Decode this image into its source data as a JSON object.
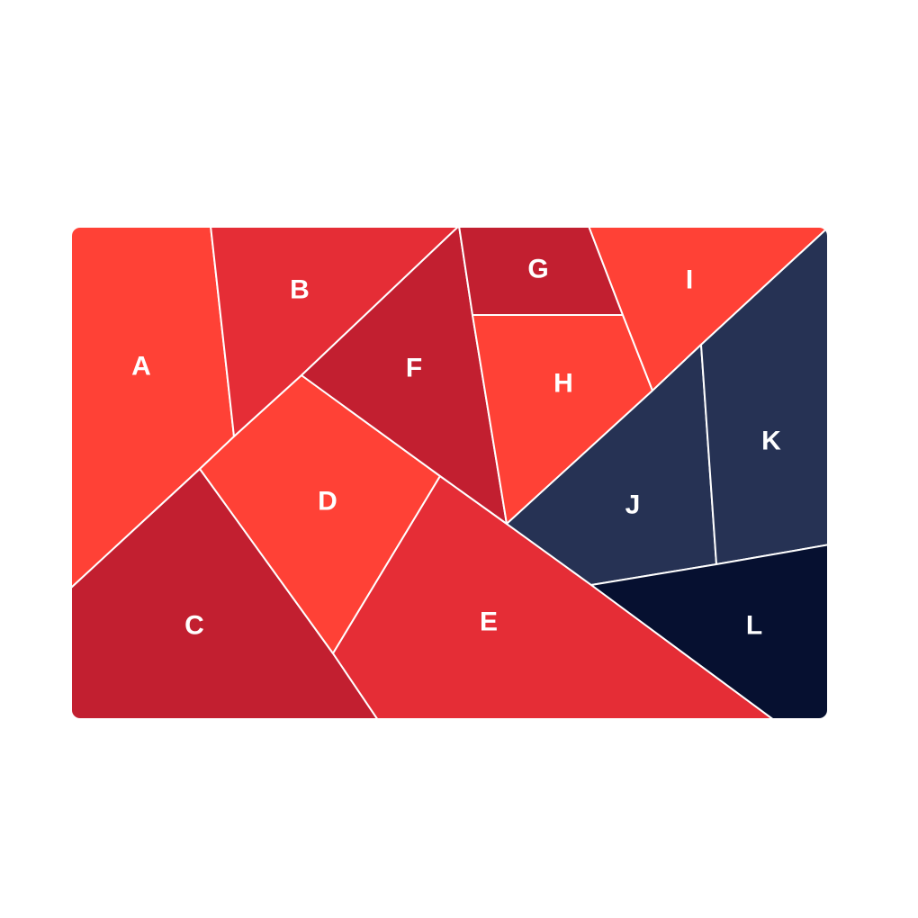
{
  "colors": {
    "red_bright": "#FF4136",
    "red_mid": "#E52D36",
    "red_dark": "#C21F30",
    "navy": "#263254",
    "navy_dark": "#061030",
    "divider": "#FFFFFF",
    "label": "#FFFFFF"
  },
  "regions": [
    {
      "id": "A",
      "label": "A",
      "color": "#FF4136"
    },
    {
      "id": "B",
      "label": "B",
      "color": "#E52D36"
    },
    {
      "id": "C",
      "label": "C",
      "color": "#C21F30"
    },
    {
      "id": "D",
      "label": "D",
      "color": "#FF4136"
    },
    {
      "id": "E",
      "label": "E",
      "color": "#E52D36"
    },
    {
      "id": "F",
      "label": "F",
      "color": "#C21F30"
    },
    {
      "id": "G",
      "label": "G",
      "color": "#C21F30"
    },
    {
      "id": "H",
      "label": "H",
      "color": "#FF4136"
    },
    {
      "id": "I",
      "label": "I",
      "color": "#FF4136"
    },
    {
      "id": "J",
      "label": "J",
      "color": "#263254"
    },
    {
      "id": "K",
      "label": "K",
      "color": "#263254"
    },
    {
      "id": "L",
      "label": "L",
      "color": "#061030"
    }
  ]
}
